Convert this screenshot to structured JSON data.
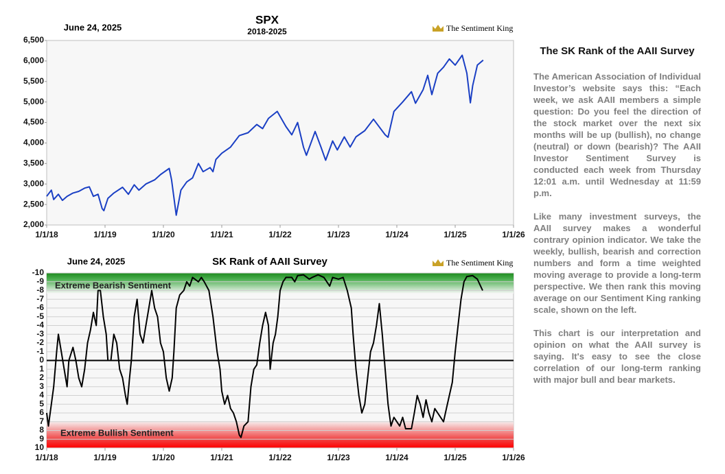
{
  "chart_data": [
    {
      "type": "line",
      "title": "SPX",
      "subtitle": "2018-2025",
      "date_label": "June 24, 2025",
      "logo_text": "The Sentiment King",
      "color": "#1a3fc4",
      "xlim": [
        2018,
        2026
      ],
      "xticks": [
        {
          "value": 2018,
          "label": "1/1/18"
        },
        {
          "value": 2019,
          "label": "1/1/19"
        },
        {
          "value": 2020,
          "label": "1/1/20"
        },
        {
          "value": 2021,
          "label": "1/1/21"
        },
        {
          "value": 2022,
          "label": "1/1/22"
        },
        {
          "value": 2023,
          "label": "1/1/23"
        },
        {
          "value": 2024,
          "label": "1/1/24"
        },
        {
          "value": 2025,
          "label": "1/1/25"
        },
        {
          "value": 2026,
          "label": "1/1/26"
        }
      ],
      "ylim": [
        2000,
        6500
      ],
      "yticks": [
        {
          "value": 2000,
          "label": "2,000"
        },
        {
          "value": 2500,
          "label": "2,500"
        },
        {
          "value": 3000,
          "label": "3,000"
        },
        {
          "value": 3500,
          "label": "3,500"
        },
        {
          "value": 4000,
          "label": "4,000"
        },
        {
          "value": 4500,
          "label": "4,500"
        },
        {
          "value": 5000,
          "label": "5,000"
        },
        {
          "value": 5500,
          "label": "5,500"
        },
        {
          "value": 6000,
          "label": "6,000"
        },
        {
          "value": 6500,
          "label": "6,500"
        }
      ],
      "grid": false,
      "x": [
        2018.0,
        2018.08,
        2018.12,
        2018.2,
        2018.27,
        2018.35,
        2018.45,
        2018.55,
        2018.65,
        2018.73,
        2018.8,
        2018.88,
        2018.95,
        2018.98,
        2019.05,
        2019.15,
        2019.3,
        2019.4,
        2019.5,
        2019.58,
        2019.7,
        2019.85,
        2019.95,
        2020.1,
        2020.14,
        2020.22,
        2020.3,
        2020.4,
        2020.5,
        2020.6,
        2020.68,
        2020.8,
        2020.85,
        2020.9,
        2021.0,
        2021.15,
        2021.3,
        2021.45,
        2021.6,
        2021.7,
        2021.8,
        2021.95,
        2022.1,
        2022.2,
        2022.3,
        2022.4,
        2022.45,
        2022.6,
        2022.7,
        2022.78,
        2022.9,
        2022.98,
        2023.1,
        2023.2,
        2023.3,
        2023.45,
        2023.6,
        2023.8,
        2023.85,
        2023.95,
        2024.1,
        2024.25,
        2024.32,
        2024.45,
        2024.53,
        2024.6,
        2024.7,
        2024.8,
        2024.9,
        2025.0,
        2025.12,
        2025.2,
        2025.26,
        2025.3,
        2025.38,
        2025.48
      ],
      "values": [
        2700,
        2850,
        2620,
        2750,
        2600,
        2700,
        2780,
        2820,
        2900,
        2930,
        2700,
        2750,
        2400,
        2350,
        2650,
        2780,
        2920,
        2750,
        2980,
        2850,
        3000,
        3100,
        3230,
        3380,
        3100,
        2240,
        2850,
        3050,
        3150,
        3500,
        3300,
        3400,
        3300,
        3600,
        3750,
        3900,
        4180,
        4250,
        4450,
        4350,
        4600,
        4770,
        4400,
        4200,
        4500,
        3900,
        3700,
        4280,
        3900,
        3580,
        4050,
        3830,
        4150,
        3900,
        4150,
        4300,
        4580,
        4200,
        4140,
        4770,
        5000,
        5250,
        4970,
        5300,
        5650,
        5180,
        5700,
        5850,
        6050,
        5900,
        6140,
        5700,
        4980,
        5400,
        5900,
        6020
      ]
    },
    {
      "type": "line",
      "title": "SK Rank of AAII Survey",
      "date_label": "June 24, 2025",
      "logo_text": "The Sentiment King",
      "annotations": [
        "Extreme Bearish Sentiment",
        "Extreme Bullish Sentiment"
      ],
      "color": "#000000",
      "xlim": [
        2018,
        2026
      ],
      "xticks": [
        {
          "value": 2018,
          "label": "1/1/18"
        },
        {
          "value": 2019,
          "label": "1/1/19"
        },
        {
          "value": 2020,
          "label": "1/1/20"
        },
        {
          "value": 2021,
          "label": "1/1/21"
        },
        {
          "value": 2022,
          "label": "1/1/22"
        },
        {
          "value": 2023,
          "label": "1/1/23"
        },
        {
          "value": 2024,
          "label": "1/1/24"
        },
        {
          "value": 2025,
          "label": "1/1/25"
        },
        {
          "value": 2026,
          "label": "1/1/26"
        }
      ],
      "ylim": [
        10,
        -10
      ],
      "yticks": [
        -10,
        -9,
        -8,
        -7,
        -6,
        -5,
        -4,
        -3,
        -2,
        -1,
        0,
        1,
        2,
        3,
        4,
        5,
        6,
        7,
        8,
        9,
        10
      ],
      "grid": true,
      "x": [
        2018.0,
        2018.03,
        2018.08,
        2018.12,
        2018.17,
        2018.2,
        2018.25,
        2018.3,
        2018.35,
        2018.38,
        2018.45,
        2018.5,
        2018.55,
        2018.6,
        2018.65,
        2018.7,
        2018.75,
        2018.8,
        2018.85,
        2018.88,
        2018.92,
        2018.97,
        2019.02,
        2019.05,
        2019.1,
        2019.15,
        2019.2,
        2019.25,
        2019.3,
        2019.35,
        2019.38,
        2019.42,
        2019.45,
        2019.5,
        2019.55,
        2019.6,
        2019.65,
        2019.7,
        2019.75,
        2019.8,
        2019.85,
        2019.9,
        2019.95,
        2020.0,
        2020.05,
        2020.1,
        2020.15,
        2020.18,
        2020.22,
        2020.28,
        2020.35,
        2020.4,
        2020.45,
        2020.5,
        2020.6,
        2020.65,
        2020.7,
        2020.78,
        2020.85,
        2020.92,
        2020.97,
        2021.0,
        2021.05,
        2021.1,
        2021.15,
        2021.2,
        2021.25,
        2021.3,
        2021.33,
        2021.38,
        2021.45,
        2021.5,
        2021.55,
        2021.6,
        2021.65,
        2021.7,
        2021.75,
        2021.8,
        2021.83,
        2021.88,
        2021.92,
        2021.96,
        2022.0,
        2022.05,
        2022.1,
        2022.2,
        2022.25,
        2022.3,
        2022.4,
        2022.5,
        2022.55,
        2022.65,
        2022.75,
        2022.85,
        2022.9,
        2023.0,
        2023.08,
        2023.15,
        2023.22,
        2023.25,
        2023.3,
        2023.35,
        2023.4,
        2023.45,
        2023.5,
        2023.55,
        2023.6,
        2023.65,
        2023.7,
        2023.75,
        2023.8,
        2023.85,
        2023.9,
        2023.95,
        2024.0,
        2024.05,
        2024.1,
        2024.15,
        2024.25,
        2024.3,
        2024.35,
        2024.4,
        2024.45,
        2024.5,
        2024.55,
        2024.6,
        2024.65,
        2024.7,
        2024.75,
        2024.8,
        2024.85,
        2024.9,
        2024.95,
        2025.0,
        2025.05,
        2025.1,
        2025.15,
        2025.2,
        2025.3,
        2025.38,
        2025.47
      ],
      "values": [
        6,
        7.5,
        5,
        3,
        -1,
        -3,
        -1,
        1,
        3,
        0,
        -1.5,
        0,
        2,
        3,
        1,
        -2,
        -3.5,
        -5.5,
        -4,
        -8,
        -8,
        -5,
        -3,
        0,
        0,
        -3,
        -2,
        1,
        2,
        4,
        5,
        2,
        0,
        -5,
        -7,
        -3,
        -2,
        -4,
        -6,
        -8,
        -6,
        -5,
        -2,
        -1,
        2,
        3.5,
        2,
        -1,
        -6,
        -7.5,
        -8,
        -9,
        -8.5,
        -9.5,
        -9,
        -9.5,
        -9,
        -8,
        -5,
        -1,
        1,
        3.5,
        5,
        4,
        5.5,
        6,
        7,
        8.5,
        8.8,
        7.5,
        7,
        3,
        1,
        0.5,
        -2,
        -4,
        -5.5,
        -4,
        1,
        -2,
        -3,
        -5,
        -8,
        -9,
        -9.5,
        -9.5,
        -9,
        -9.7,
        -9.8,
        -9.3,
        -9.5,
        -9.8,
        -9.5,
        -8.5,
        -9.5,
        -9.3,
        -9.5,
        -8,
        -6,
        -3,
        1,
        4,
        6,
        5,
        2,
        -1,
        -2,
        -4,
        -6.5,
        -3,
        1,
        5,
        7.5,
        6.5,
        7,
        7.5,
        6.5,
        7.8,
        7.8,
        6,
        4,
        5,
        6.5,
        4.5,
        6,
        7,
        5.5,
        6,
        6.5,
        7,
        5.5,
        4,
        2.5,
        -1,
        -4,
        -7,
        -9,
        -9.6,
        -9.7,
        -9.3,
        -8
      ]
    }
  ],
  "sidebar": {
    "title": "The SK Rank of the AAII Survey",
    "paragraphs": [
      "The American Association of Individual Investor’s website says this: “Each week, we ask AAII members a simple question: Do you feel the direction of the stock market over the next six months will be up (bullish), no change (neutral) or down (bearish)? The AAII Investor Sentiment Survey is conducted each week from Thursday 12:01 a.m. until Wednesday at 11:59 p.m.",
      "Like many investment surveys, the AAII survey makes a wonderful contrary opinion indicator. We take the weekly, bullish, bearish and correction numbers and form a time weighted moving average to provide a long-term perspective. We then rank this moving average on our Sentiment King ranking scale, shown on the left.",
      "This chart is our interpretation and opinion on what the AAII survey is saying. It's easy to see the close correlation of our long-term ranking with major bull and bear markets."
    ]
  }
}
